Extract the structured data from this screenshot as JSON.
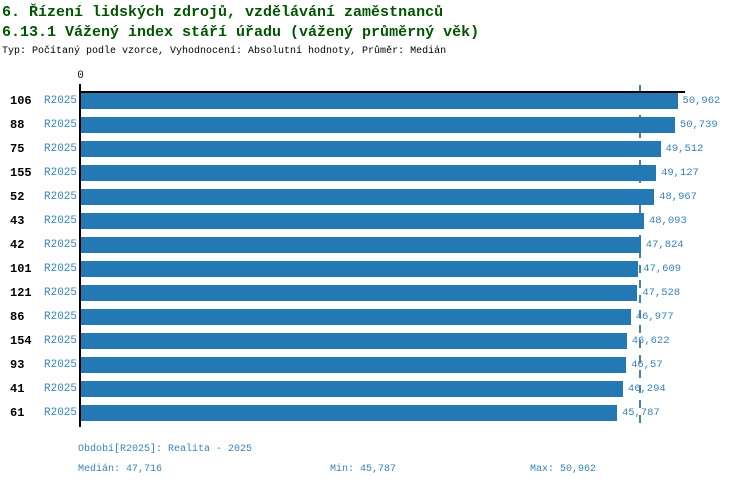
{
  "header": {
    "title_line1": "6. Řízení lidských zdrojů, vzdělávání zaměstnanců",
    "title_line2": "6.13.1 Vážený index stáří úřadu (vážený průměrný věk)",
    "subtitle": "Typ: Počítaný podle vzorce, Vyhodnocení: Absolutní hodnoty, Průměr: Medián"
  },
  "chart_data": {
    "type": "bar",
    "orientation": "horizontal",
    "title": "6.13.1 Vážený index stáří úřadu (vážený průměrný věk)",
    "categories": [
      "106",
      "88",
      "75",
      "155",
      "52",
      "43",
      "42",
      "101",
      "121",
      "86",
      "154",
      "93",
      "41",
      "61"
    ],
    "series_label": "R2025",
    "values": [
      50.962,
      50.739,
      49.512,
      49.127,
      48.967,
      48.093,
      47.824,
      47.609,
      47.528,
      46.977,
      46.622,
      46.57,
      46.294,
      45.787
    ],
    "value_labels": [
      "50,962",
      "50,739",
      "49,512",
      "49,127",
      "48,967",
      "48,093",
      "47,824",
      "47,609",
      "47,528",
      "46,977",
      "46,622",
      "46,57",
      "46,294",
      "45,787"
    ],
    "x_axis": {
      "origin_label": "0",
      "min": 0,
      "max": 51.6,
      "grid": false
    },
    "median_value": 47.716,
    "legend_position": "none",
    "bar_color": "#2478b4",
    "median_line_color": "#4181b3"
  },
  "footer": {
    "period": "Období[R2025]: Realita - 2025",
    "median": "Medián: 47,716",
    "min": "Min: 45,787",
    "max": "Max: 50,962"
  },
  "colors": {
    "title": "#005500",
    "accent_text": "#3583bd",
    "axis": "#000000"
  }
}
